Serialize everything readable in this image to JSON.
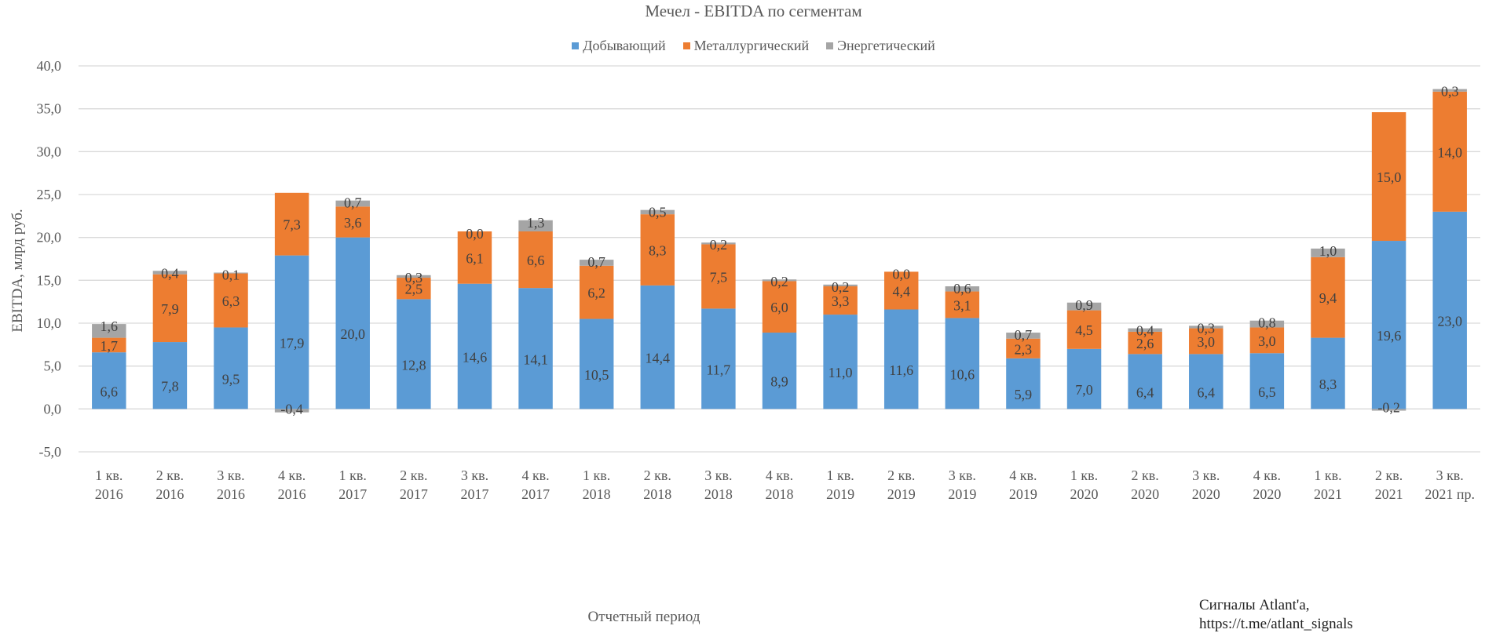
{
  "chart_data": {
    "type": "bar",
    "stacked": true,
    "title": "Мечел - EBITDA по сегментам",
    "xlabel": "Отчетный период",
    "ylabel": "EBITDA, млрд руб.",
    "ylim": [
      -5,
      40
    ],
    "yticks": [
      -5,
      0,
      5,
      10,
      15,
      20,
      25,
      30,
      35,
      40
    ],
    "ytick_labels": [
      "-5,0",
      "0,0",
      "5,0",
      "10,0",
      "15,0",
      "20,0",
      "25,0",
      "30,0",
      "35,0",
      "40,0"
    ],
    "grid": true,
    "legend_position": "top",
    "categories": [
      [
        "1 кв.",
        "2016"
      ],
      [
        "2 кв.",
        "2016"
      ],
      [
        "3 кв.",
        "2016"
      ],
      [
        "4 кв.",
        "2016"
      ],
      [
        "1 кв.",
        "2017"
      ],
      [
        "2 кв.",
        "2017"
      ],
      [
        "3 кв.",
        "2017"
      ],
      [
        "4 кв.",
        "2017"
      ],
      [
        "1 кв.",
        "2018"
      ],
      [
        "2 кв.",
        "2018"
      ],
      [
        "3 кв.",
        "2018"
      ],
      [
        "4 кв.",
        "2018"
      ],
      [
        "1 кв.",
        "2019"
      ],
      [
        "2 кв.",
        "2019"
      ],
      [
        "3 кв.",
        "2019"
      ],
      [
        "4 кв.",
        "2019"
      ],
      [
        "1 кв.",
        "2020"
      ],
      [
        "2 кв.",
        "2020"
      ],
      [
        "3 кв.",
        "2020"
      ],
      [
        "4 кв.",
        "2020"
      ],
      [
        "1 кв.",
        "2021"
      ],
      [
        "2 кв.",
        "2021"
      ],
      [
        "3 кв.",
        "2021 пр."
      ]
    ],
    "series": [
      {
        "name": "Добывающий",
        "color": "#5B9BD5",
        "values": [
          6.6,
          7.8,
          9.5,
          17.9,
          20.0,
          12.8,
          14.6,
          14.1,
          10.5,
          14.4,
          11.7,
          8.9,
          11.0,
          11.6,
          10.6,
          5.9,
          7.0,
          6.4,
          6.4,
          6.5,
          8.3,
          19.6,
          23.0
        ]
      },
      {
        "name": "Металлургический",
        "color": "#ED7D31",
        "values": [
          1.7,
          7.9,
          6.3,
          7.3,
          3.6,
          2.5,
          6.1,
          6.6,
          6.2,
          8.3,
          7.5,
          6.0,
          3.3,
          4.4,
          3.1,
          2.3,
          4.5,
          2.6,
          3.0,
          3.0,
          9.4,
          15.0,
          14.0
        ]
      },
      {
        "name": "Энергетический",
        "color": "#A5A5A5",
        "values": [
          1.6,
          0.4,
          0.1,
          -0.4,
          0.7,
          0.3,
          0.0,
          1.3,
          0.7,
          0.5,
          0.2,
          0.2,
          0.2,
          0.0,
          0.6,
          0.7,
          0.9,
          0.4,
          0.3,
          0.8,
          1.0,
          -0.2,
          0.3
        ]
      }
    ],
    "annotation": [
      "Сигналы Atlant'a,",
      "https://t.me/atlant_signals"
    ]
  }
}
